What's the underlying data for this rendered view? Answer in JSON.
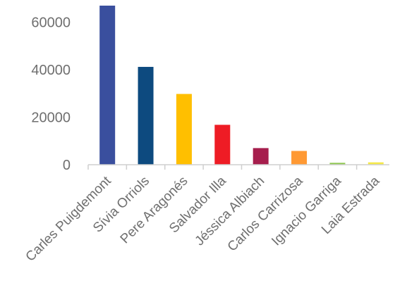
{
  "chart_data": {
    "type": "bar",
    "title": "",
    "xlabel": "",
    "ylabel": "",
    "ylim": [
      0,
      67000
    ],
    "yticks": [
      0,
      20000,
      40000,
      60000
    ],
    "grid": false,
    "legend": "none",
    "categories": [
      "Carles Puigdemont",
      "Sívia Orriols",
      "Pere Aragonés",
      "Salvador Illa",
      "Jéssica Albiach",
      "Carlos Carrizosa",
      "Ignacio Garriga",
      "Laia Estrada"
    ],
    "values": [
      67000,
      41200,
      29800,
      16800,
      7000,
      5800,
      800,
      1000
    ],
    "colors": [
      "#3a4f9e",
      "#0d4a7f",
      "#ffbf00",
      "#ee1c25",
      "#a61e4d",
      "#ff9933",
      "#8fc752",
      "#f5e94a"
    ]
  }
}
